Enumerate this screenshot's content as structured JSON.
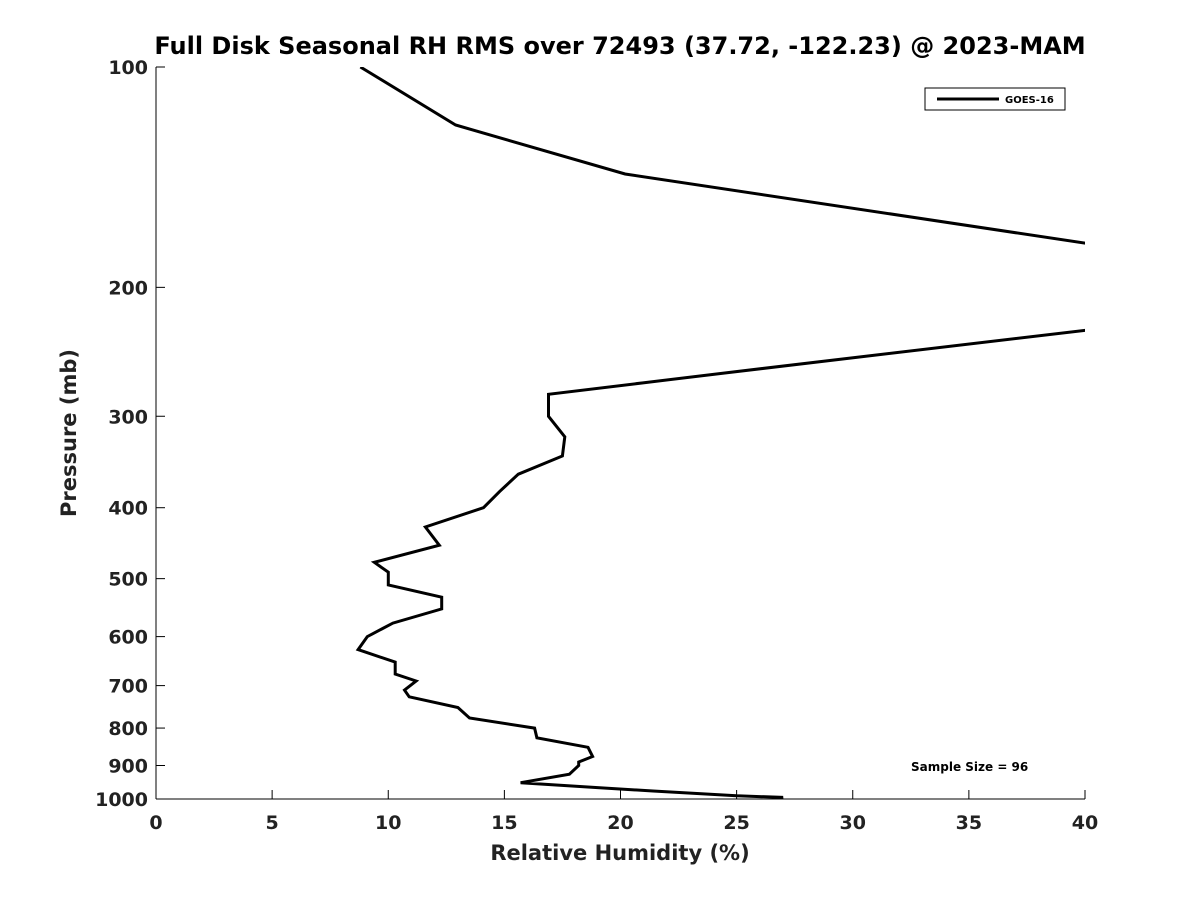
{
  "chart_data": {
    "type": "line",
    "title": "Full Disk Seasonal RH RMS over 72493 (37.72, -122.23) @ 2023-MAM",
    "xlabel": "Relative Humidity (%)",
    "ylabel": "Pressure (mb)",
    "xlim": [
      0,
      40
    ],
    "ylim": [
      100,
      1000
    ],
    "y_scale": "log",
    "y_reversed": true,
    "grid": false,
    "xticks": [
      0,
      5,
      10,
      15,
      20,
      25,
      30,
      35,
      40
    ],
    "yticks": [
      100,
      200,
      300,
      400,
      500,
      600,
      700,
      800,
      900,
      1000
    ],
    "legend": {
      "position": "top-right",
      "entries": [
        "GOES-16"
      ]
    },
    "annotation": "Sample Size = 96",
    "series": [
      {
        "name": "GOES-16",
        "color": "#000000",
        "points": [
          [
            8.8,
            100
          ],
          [
            12.9,
            120
          ],
          [
            20.2,
            140
          ],
          [
            40.5,
            175
          ],
          [
            40.5,
            228
          ],
          [
            24.4,
            262
          ],
          [
            16.9,
            280
          ],
          [
            16.9,
            300
          ],
          [
            17.6,
            320
          ],
          [
            17.5,
            340
          ],
          [
            15.6,
            360
          ],
          [
            14.8,
            380
          ],
          [
            14.1,
            400
          ],
          [
            11.6,
            425
          ],
          [
            12.2,
            450
          ],
          [
            9.4,
            475
          ],
          [
            10.0,
            490
          ],
          [
            10.0,
            510
          ],
          [
            12.3,
            530
          ],
          [
            12.3,
            550
          ],
          [
            10.2,
            575
          ],
          [
            9.1,
            600
          ],
          [
            8.7,
            625
          ],
          [
            10.3,
            650
          ],
          [
            10.3,
            675
          ],
          [
            11.2,
            690
          ],
          [
            10.7,
            710
          ],
          [
            10.9,
            725
          ],
          [
            13.0,
            750
          ],
          [
            13.5,
            775
          ],
          [
            16.3,
            800
          ],
          [
            16.4,
            825
          ],
          [
            18.6,
            850
          ],
          [
            18.8,
            875
          ],
          [
            18.2,
            890
          ],
          [
            18.2,
            900
          ],
          [
            17.8,
            925
          ],
          [
            15.7,
            950
          ],
          [
            19.1,
            965
          ],
          [
            21.4,
            975
          ],
          [
            25.0,
            990
          ],
          [
            27.0,
            995
          ],
          [
            26.7,
            1000
          ]
        ]
      }
    ]
  }
}
